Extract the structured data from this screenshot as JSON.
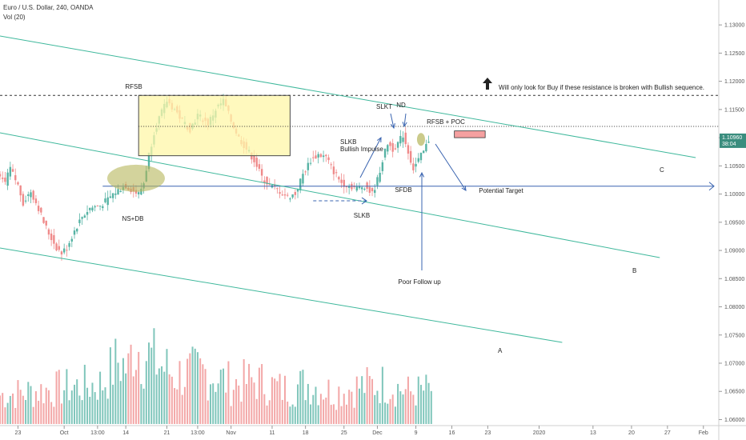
{
  "header": {
    "symbol": "Euro / U.S. Dollar, 240, OANDA",
    "volume": "Vol (20)"
  },
  "colors": {
    "up": "#56b3a4",
    "down": "#ef8a8a",
    "channel": "#3fb89c",
    "blue": "#3a64b0",
    "box_fill": "#fff7a8",
    "box_stroke": "#4a4a4a",
    "ellipse": "#b5b55a",
    "poc_box": "#f5a0a0",
    "last_price_bg": "#3a8d7e"
  },
  "chart_data": {
    "type": "candlestick",
    "title": "Euro / U.S. Dollar, 240, OANDA",
    "y_axis": {
      "ylim": [
        1.0595,
        1.133
      ],
      "ticks": [
        "1.13000",
        "1.12500",
        "1.12000",
        "1.11500",
        "1.11000",
        "1.10500",
        "1.10000",
        "1.09500",
        "1.09000",
        "1.08500",
        "1.08000",
        "1.07500",
        "1.07000",
        "1.06500",
        "1.06000"
      ],
      "tick_values": [
        1.13,
        1.125,
        1.12,
        1.115,
        1.11,
        1.105,
        1.1,
        1.095,
        1.09,
        1.085,
        1.08,
        1.075,
        1.07,
        1.065,
        1.06
      ],
      "last_price": "1.10960",
      "countdown": "38:04"
    },
    "x_axis": {
      "ticks": [
        "23",
        "Oct",
        "13:00",
        "14",
        "21",
        "13:00",
        "Nov",
        "11",
        "18",
        "25",
        "Dec",
        "9",
        "16",
        "23",
        "2020",
        "13",
        "20",
        "27",
        "Feb"
      ],
      "tick_index": [
        7,
        25,
        38,
        49,
        65,
        77,
        90,
        106,
        119,
        134,
        147,
        162,
        176,
        190,
        210,
        231,
        246,
        260,
        274
      ]
    },
    "price_path": [
      [
        0,
        1.103
      ],
      [
        3,
        1.102
      ],
      [
        5,
        1.1045
      ],
      [
        8,
        1.1015
      ],
      [
        10,
        1.0985
      ],
      [
        13,
        1.1005
      ],
      [
        16,
        1.0975
      ],
      [
        18,
        1.095
      ],
      [
        20,
        1.093
      ],
      [
        23,
        1.0905
      ],
      [
        25,
        1.0895
      ],
      [
        27,
        1.0905
      ],
      [
        30,
        1.0935
      ],
      [
        33,
        1.096
      ],
      [
        36,
        1.0975
      ],
      [
        40,
        1.098
      ],
      [
        43,
        1.099
      ],
      [
        45,
        1.1
      ],
      [
        48,
        1.101
      ],
      [
        50,
        1.1015
      ],
      [
        53,
        1.1005
      ],
      [
        55,
        1.1
      ],
      [
        57,
        1.102
      ],
      [
        59,
        1.107
      ],
      [
        61,
        1.111
      ],
      [
        63,
        1.1135
      ],
      [
        66,
        1.1165
      ],
      [
        69,
        1.115
      ],
      [
        72,
        1.113
      ],
      [
        75,
        1.1115
      ],
      [
        78,
        1.114
      ],
      [
        82,
        1.1125
      ],
      [
        85,
        1.115
      ],
      [
        88,
        1.1165
      ],
      [
        91,
        1.113
      ],
      [
        94,
        1.11
      ],
      [
        97,
        1.108
      ],
      [
        100,
        1.106
      ],
      [
        103,
        1.103
      ],
      [
        106,
        1.1015
      ],
      [
        110,
        1.1005
      ],
      [
        113,
        1.0995
      ],
      [
        116,
        1.1
      ],
      [
        119,
        1.1035
      ],
      [
        122,
        1.106
      ],
      [
        125,
        1.107
      ],
      [
        128,
        1.1065
      ],
      [
        131,
        1.104
      ],
      [
        134,
        1.102
      ],
      [
        137,
        1.1015
      ],
      [
        140,
        1.101
      ],
      [
        143,
        1.1015
      ],
      [
        146,
        1.1
      ],
      [
        148,
        1.1025
      ],
      [
        150,
        1.106
      ],
      [
        152,
        1.109
      ],
      [
        154,
        1.108
      ],
      [
        156,
        1.109
      ],
      [
        158,
        1.1105
      ],
      [
        160,
        1.1075
      ],
      [
        162,
        1.1045
      ],
      [
        164,
        1.106
      ],
      [
        166,
        1.1075
      ],
      [
        168,
        1.1096
      ]
    ],
    "volume_ylim": [
      0,
      150000
    ],
    "volume_series": [
      [
        0,
        50000
      ],
      [
        20,
        60000
      ],
      [
        40,
        70000
      ],
      [
        46,
        110000
      ],
      [
        50,
        95000
      ],
      [
        52,
        140000
      ],
      [
        60,
        110000
      ],
      [
        68,
        85000
      ],
      [
        80,
        90000
      ],
      [
        90,
        70000
      ],
      [
        100,
        75000
      ],
      [
        110,
        60000
      ],
      [
        120,
        70000
      ],
      [
        130,
        55000
      ],
      [
        140,
        65000
      ],
      [
        150,
        70000
      ],
      [
        160,
        55000
      ],
      [
        168,
        60000
      ]
    ],
    "annotations": {
      "rfsb": "RFSB",
      "ns_db": "NS+DB",
      "slkb_low": "SLKB",
      "slkb_high": "SLKB",
      "bullish_impulse": "Bullish Impulse",
      "slkt": "SLKT",
      "nd": "ND",
      "rfsb_poc": "RFSB + POC",
      "sfdb": "SFDB",
      "potential_target": "Potential  Target",
      "poor_follow_up": "Poor Follow up",
      "resistance_note": "Will only look for Buy if these resistance is broken with Bullish sequence.",
      "label_a": "A",
      "label_b": "B",
      "label_c": "C"
    },
    "levels": {
      "resistance_dashed": 1.1175,
      "resistance_dotted": 1.112,
      "support_blue": 1.1014,
      "rfsb_box": [
        1.1175,
        1.1068
      ]
    }
  }
}
